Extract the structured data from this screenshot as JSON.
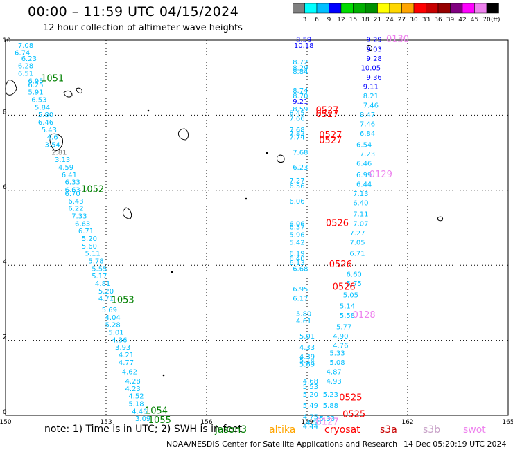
{
  "header": {
    "title": "00:00 – 11:59 UTC 04/15/2024",
    "subtitle": "12 hour collection of altimeter wave heights"
  },
  "colorbar": {
    "colors": [
      "#808080",
      "#00ffff",
      "#00bfff",
      "#0000ff",
      "#00dc00",
      "#00b000",
      "#009000",
      "#ffff00",
      "#ffd700",
      "#ffa500",
      "#ff0000",
      "#c80000",
      "#960000",
      "#800080",
      "#ff00ff",
      "#ee82ee",
      "#000000"
    ],
    "labels": [
      "3",
      "6",
      "9",
      "12",
      "15",
      "18",
      "21",
      "24",
      "27",
      "30",
      "33",
      "36",
      "39",
      "42",
      "45",
      "70"
    ],
    "unit": "(ft)"
  },
  "note": "note: 1) Time is in UTC; 2) SWH is in feet",
  "missions": [
    {
      "name": "jason3",
      "color": "#008000"
    },
    {
      "name": "altika",
      "color": "#ffa500"
    },
    {
      "name": "cryosat",
      "color": "#ff0000"
    },
    {
      "name": "s3a",
      "color": "#c80000"
    },
    {
      "name": "s3b",
      "color": "#c8a2c8"
    },
    {
      "name": "swot",
      "color": "#ee82ee"
    }
  ],
  "footer": {
    "credit": "NOAA/NESDIS Center for Satellite Applications and Research",
    "timestamp": "14 Dec 05:20:19 UTC 2024"
  },
  "chart_data": {
    "type": "scatter",
    "xlim": [
      150,
      165
    ],
    "ylim": [
      0,
      10
    ],
    "xticks": [
      "150",
      "153",
      "156",
      "159",
      "162",
      "165"
    ],
    "yticks": [
      "0",
      "2",
      "4",
      "6",
      "8",
      "10"
    ],
    "grid": true,
    "points": [
      {
        "x": 150.6,
        "y": 9.8,
        "v": "7.08",
        "c": "#00bfff"
      },
      {
        "x": 150.5,
        "y": 9.6,
        "v": "6.74",
        "c": "#00bfff"
      },
      {
        "x": 150.7,
        "y": 9.45,
        "v": "6.23",
        "c": "#00bfff"
      },
      {
        "x": 150.6,
        "y": 9.25,
        "v": "6.28",
        "c": "#00bfff"
      },
      {
        "x": 150.6,
        "y": 9.05,
        "v": "6.51",
        "c": "#00bfff"
      },
      {
        "x": 150.9,
        "y": 8.85,
        "v": "6.95",
        "c": "#00bfff"
      },
      {
        "x": 150.9,
        "y": 8.75,
        "v": "6.25",
        "c": "#00bfff"
      },
      {
        "x": 150.9,
        "y": 8.55,
        "v": "5.91",
        "c": "#00bfff"
      },
      {
        "x": 151.0,
        "y": 8.35,
        "v": "6.53",
        "c": "#00bfff"
      },
      {
        "x": 151.1,
        "y": 8.15,
        "v": "5.84",
        "c": "#00bfff"
      },
      {
        "x": 151.2,
        "y": 7.95,
        "v": "5.80",
        "c": "#00bfff"
      },
      {
        "x": 151.2,
        "y": 7.75,
        "v": "6.46",
        "c": "#00bfff"
      },
      {
        "x": 151.3,
        "y": 7.55,
        "v": "5.43",
        "c": "#00bfff"
      },
      {
        "x": 151.4,
        "y": 7.35,
        "v": "4.6",
        "c": "#00bfff"
      },
      {
        "x": 151.4,
        "y": 7.15,
        "v": "3.54",
        "c": "#00bfff"
      },
      {
        "x": 151.6,
        "y": 6.95,
        "v": "2.81",
        "c": "#808080"
      },
      {
        "x": 151.7,
        "y": 6.75,
        "v": "3.13",
        "c": "#00bfff"
      },
      {
        "x": 151.8,
        "y": 6.55,
        "v": "4.59",
        "c": "#00bfff"
      },
      {
        "x": 151.9,
        "y": 6.35,
        "v": "6.41",
        "c": "#00bfff"
      },
      {
        "x": 152.0,
        "y": 6.15,
        "v": "6.33",
        "c": "#00bfff"
      },
      {
        "x": 152.0,
        "y": 5.95,
        "v": "6.63",
        "c": "#00bfff"
      },
      {
        "x": 152.0,
        "y": 5.85,
        "v": "6.70",
        "c": "#00bfff"
      },
      {
        "x": 152.1,
        "y": 5.65,
        "v": "6.43",
        "c": "#00bfff"
      },
      {
        "x": 152.1,
        "y": 5.45,
        "v": "6.22",
        "c": "#00bfff"
      },
      {
        "x": 152.2,
        "y": 5.25,
        "v": "7.33",
        "c": "#00bfff"
      },
      {
        "x": 152.3,
        "y": 5.05,
        "v": "6.63",
        "c": "#00bfff"
      },
      {
        "x": 152.4,
        "y": 4.85,
        "v": "6.71",
        "c": "#00bfff"
      },
      {
        "x": 152.5,
        "y": 4.65,
        "v": "5.20",
        "c": "#00bfff"
      },
      {
        "x": 152.5,
        "y": 4.45,
        "v": "5.60",
        "c": "#00bfff"
      },
      {
        "x": 152.6,
        "y": 4.25,
        "v": "5.11",
        "c": "#00bfff"
      },
      {
        "x": 152.7,
        "y": 4.05,
        "v": "5.78",
        "c": "#00bfff"
      },
      {
        "x": 152.8,
        "y": 3.85,
        "v": "5.55",
        "c": "#00bfff"
      },
      {
        "x": 152.8,
        "y": 3.65,
        "v": "5.17",
        "c": "#00bfff"
      },
      {
        "x": 152.9,
        "y": 3.45,
        "v": "4.81",
        "c": "#00bfff"
      },
      {
        "x": 153.0,
        "y": 3.25,
        "v": "5.20",
        "c": "#00bfff"
      },
      {
        "x": 153.0,
        "y": 3.05,
        "v": "4.71",
        "c": "#00bfff"
      },
      {
        "x": 153.1,
        "y": 2.75,
        "v": "5.69",
        "c": "#00bfff"
      },
      {
        "x": 153.2,
        "y": 2.55,
        "v": "4.04",
        "c": "#00bfff"
      },
      {
        "x": 153.2,
        "y": 2.35,
        "v": "5.28",
        "c": "#00bfff"
      },
      {
        "x": 153.3,
        "y": 2.15,
        "v": "5.01",
        "c": "#00bfff"
      },
      {
        "x": 153.4,
        "y": 1.95,
        "v": "4.36",
        "c": "#00bfff"
      },
      {
        "x": 153.5,
        "y": 1.75,
        "v": "3.93",
        "c": "#00bfff"
      },
      {
        "x": 153.6,
        "y": 1.55,
        "v": "4.21",
        "c": "#00bfff"
      },
      {
        "x": 153.6,
        "y": 1.35,
        "v": "4.77",
        "c": "#00bfff"
      },
      {
        "x": 153.7,
        "y": 1.1,
        "v": "4.62",
        "c": "#00bfff"
      },
      {
        "x": 153.8,
        "y": 0.85,
        "v": "4.28",
        "c": "#00bfff"
      },
      {
        "x": 153.8,
        "y": 0.65,
        "v": "4.23",
        "c": "#00bfff"
      },
      {
        "x": 153.9,
        "y": 0.45,
        "v": "4.52",
        "c": "#00bfff"
      },
      {
        "x": 153.9,
        "y": 0.25,
        "v": "5.18",
        "c": "#00bfff"
      },
      {
        "x": 154.0,
        "y": 0.05,
        "v": "4.46",
        "c": "#00bfff"
      },
      {
        "x": 154.1,
        "y": -0.15,
        "v": "3.09",
        "c": "#00bfff"
      },
      {
        "x": 158.9,
        "y": 9.95,
        "v": "8.59",
        "c": "#0000ff"
      },
      {
        "x": 158.9,
        "y": 9.8,
        "v": "10.18",
        "c": "#0000ff"
      },
      {
        "x": 158.8,
        "y": 9.35,
        "v": "8.72",
        "c": "#00bfff"
      },
      {
        "x": 158.8,
        "y": 9.2,
        "v": "8.29",
        "c": "#00bfff"
      },
      {
        "x": 158.8,
        "y": 9.1,
        "v": "8.84",
        "c": "#00bfff"
      },
      {
        "x": 158.8,
        "y": 8.6,
        "v": "8.74",
        "c": "#00bfff"
      },
      {
        "x": 158.8,
        "y": 8.45,
        "v": "8.70",
        "c": "#00bfff"
      },
      {
        "x": 158.8,
        "y": 8.3,
        "v": "9.21",
        "c": "#0000ff"
      },
      {
        "x": 158.8,
        "y": 8.1,
        "v": "8.59",
        "c": "#00bfff"
      },
      {
        "x": 158.7,
        "y": 8.0,
        "v": "8.45",
        "c": "#00bfff"
      },
      {
        "x": 158.7,
        "y": 7.85,
        "v": "7.66",
        "c": "#00bfff"
      },
      {
        "x": 158.7,
        "y": 7.55,
        "v": "7.68",
        "c": "#00bfff"
      },
      {
        "x": 158.7,
        "y": 7.45,
        "v": "7.82",
        "c": "#00bfff"
      },
      {
        "x": 158.7,
        "y": 7.35,
        "v": "7.74",
        "c": "#00bfff"
      },
      {
        "x": 158.8,
        "y": 6.95,
        "v": "7.68",
        "c": "#00bfff"
      },
      {
        "x": 158.8,
        "y": 6.55,
        "v": "6.23",
        "c": "#00bfff"
      },
      {
        "x": 158.7,
        "y": 6.2,
        "v": "7.27",
        "c": "#00bfff"
      },
      {
        "x": 158.7,
        "y": 6.05,
        "v": "6.56",
        "c": "#00bfff"
      },
      {
        "x": 158.7,
        "y": 5.65,
        "v": "6.06",
        "c": "#00bfff"
      },
      {
        "x": 158.7,
        "y": 5.05,
        "v": "6.06",
        "c": "#00bfff"
      },
      {
        "x": 158.7,
        "y": 4.95,
        "v": "6.37",
        "c": "#00bfff"
      },
      {
        "x": 158.7,
        "y": 4.75,
        "v": "5.96",
        "c": "#00bfff"
      },
      {
        "x": 158.7,
        "y": 4.55,
        "v": "5.42",
        "c": "#00bfff"
      },
      {
        "x": 158.7,
        "y": 4.25,
        "v": "6.19",
        "c": "#00bfff"
      },
      {
        "x": 158.7,
        "y": 4.12,
        "v": "6.40",
        "c": "#00bfff"
      },
      {
        "x": 158.7,
        "y": 4.0,
        "v": "6.13",
        "c": "#00bfff"
      },
      {
        "x": 158.8,
        "y": 3.85,
        "v": "6.68",
        "c": "#00bfff"
      },
      {
        "x": 158.8,
        "y": 3.3,
        "v": "6.95",
        "c": "#00bfff"
      },
      {
        "x": 158.8,
        "y": 3.05,
        "v": "6.17",
        "c": "#00bfff"
      },
      {
        "x": 158.9,
        "y": 2.65,
        "v": "5.80",
        "c": "#00bfff"
      },
      {
        "x": 158.9,
        "y": 2.45,
        "v": "4.61",
        "c": "#00bfff"
      },
      {
        "x": 159.0,
        "y": 2.05,
        "v": "5.01",
        "c": "#00bfff"
      },
      {
        "x": 159.0,
        "y": 1.75,
        "v": "4.33",
        "c": "#00bfff"
      },
      {
        "x": 159.0,
        "y": 1.5,
        "v": "4.39",
        "c": "#00bfff"
      },
      {
        "x": 159.0,
        "y": 1.4,
        "v": "5.14",
        "c": "#00bfff"
      },
      {
        "x": 159.0,
        "y": 1.3,
        "v": "5.69",
        "c": "#00bfff"
      },
      {
        "x": 159.1,
        "y": 0.85,
        "v": "4.68",
        "c": "#00bfff"
      },
      {
        "x": 159.1,
        "y": 0.7,
        "v": "5.53",
        "c": "#00bfff"
      },
      {
        "x": 159.1,
        "y": 0.5,
        "v": "5.20",
        "c": "#00bfff"
      },
      {
        "x": 159.1,
        "y": 0.2,
        "v": "5.49",
        "c": "#00bfff"
      },
      {
        "x": 159.1,
        "y": -0.1,
        "v": "4.75",
        "c": "#00bfff"
      },
      {
        "x": 159.2,
        "y": -0.25,
        "v": "4.55",
        "c": "#00bfff"
      },
      {
        "x": 159.1,
        "y": -0.35,
        "v": "4.44",
        "c": "#00bfff"
      },
      {
        "x": 161.0,
        "y": 9.95,
        "v": "9.29",
        "c": "#0000ff"
      },
      {
        "x": 161.0,
        "y": 9.7,
        "v": "9.03",
        "c": "#0000ff"
      },
      {
        "x": 161.0,
        "y": 9.45,
        "v": "9.28",
        "c": "#0000ff"
      },
      {
        "x": 160.9,
        "y": 9.2,
        "v": "10.05",
        "c": "#0000ff"
      },
      {
        "x": 161.0,
        "y": 8.95,
        "v": "9.36",
        "c": "#0000ff"
      },
      {
        "x": 160.9,
        "y": 8.7,
        "v": "9.11",
        "c": "#0000ff"
      },
      {
        "x": 160.9,
        "y": 8.45,
        "v": "8.21",
        "c": "#00bfff"
      },
      {
        "x": 160.9,
        "y": 8.2,
        "v": "7.46",
        "c": "#00bfff"
      },
      {
        "x": 160.8,
        "y": 7.95,
        "v": "8.47",
        "c": "#00bfff"
      },
      {
        "x": 160.8,
        "y": 7.7,
        "v": "7.46",
        "c": "#00bfff"
      },
      {
        "x": 160.8,
        "y": 7.45,
        "v": "6.84",
        "c": "#00bfff"
      },
      {
        "x": 160.7,
        "y": 7.15,
        "v": "6.54",
        "c": "#00bfff"
      },
      {
        "x": 160.8,
        "y": 6.9,
        "v": "7.23",
        "c": "#00bfff"
      },
      {
        "x": 160.7,
        "y": 6.65,
        "v": "6.46",
        "c": "#00bfff"
      },
      {
        "x": 160.7,
        "y": 6.35,
        "v": "6.99",
        "c": "#00bfff"
      },
      {
        "x": 160.7,
        "y": 6.1,
        "v": "6.44",
        "c": "#00bfff"
      },
      {
        "x": 160.6,
        "y": 5.85,
        "v": "7.13",
        "c": "#00bfff"
      },
      {
        "x": 160.6,
        "y": 5.6,
        "v": "6.40",
        "c": "#00bfff"
      },
      {
        "x": 160.6,
        "y": 5.3,
        "v": "7.11",
        "c": "#00bfff"
      },
      {
        "x": 160.6,
        "y": 5.05,
        "v": "7.07",
        "c": "#00bfff"
      },
      {
        "x": 160.5,
        "y": 4.8,
        "v": "7.27",
        "c": "#00bfff"
      },
      {
        "x": 160.5,
        "y": 4.55,
        "v": "7.05",
        "c": "#00bfff"
      },
      {
        "x": 160.5,
        "y": 4.25,
        "v": "6.71",
        "c": "#00bfff"
      },
      {
        "x": 160.4,
        "y": 3.7,
        "v": "6.60",
        "c": "#00bfff"
      },
      {
        "x": 160.4,
        "y": 3.45,
        "v": "5.75",
        "c": "#00bfff"
      },
      {
        "x": 160.3,
        "y": 3.15,
        "v": "5.05",
        "c": "#00bfff"
      },
      {
        "x": 160.2,
        "y": 2.85,
        "v": "5.14",
        "c": "#00bfff"
      },
      {
        "x": 160.2,
        "y": 2.6,
        "v": "5.58",
        "c": "#00bfff"
      },
      {
        "x": 160.1,
        "y": 2.3,
        "v": "5.77",
        "c": "#00bfff"
      },
      {
        "x": 160.0,
        "y": 2.05,
        "v": "4.90",
        "c": "#00bfff"
      },
      {
        "x": 160.0,
        "y": 1.8,
        "v": "4.76",
        "c": "#00bfff"
      },
      {
        "x": 159.9,
        "y": 1.6,
        "v": "5.33",
        "c": "#00bfff"
      },
      {
        "x": 159.9,
        "y": 1.35,
        "v": "5.08",
        "c": "#00bfff"
      },
      {
        "x": 159.8,
        "y": 1.1,
        "v": "4.87",
        "c": "#00bfff"
      },
      {
        "x": 159.8,
        "y": 0.85,
        "v": "4.93",
        "c": "#00bfff"
      },
      {
        "x": 159.7,
        "y": 0.5,
        "v": "5.23",
        "c": "#00bfff"
      },
      {
        "x": 159.7,
        "y": 0.2,
        "v": "5.88",
        "c": "#00bfff"
      },
      {
        "x": 159.6,
        "y": -0.15,
        "v": "5.33",
        "c": "#00bfff"
      }
    ],
    "tracks": [
      {
        "label": "1051",
        "x": 151.4,
        "y": 8.9,
        "c": "#008000"
      },
      {
        "label": "1052",
        "x": 152.6,
        "y": 5.95,
        "c": "#008000"
      },
      {
        "label": "1053",
        "x": 153.5,
        "y": 3.0,
        "c": "#008000"
      },
      {
        "label": "1054",
        "x": 154.5,
        "y": 0.05,
        "c": "#008000"
      },
      {
        "label": "1055",
        "x": 154.6,
        "y": -0.2,
        "c": "#008000"
      },
      {
        "label": "0527",
        "x": 159.6,
        "y": 8.05,
        "c": "#ff0000"
      },
      {
        "label": "0527",
        "x": 159.6,
        "y": 7.95,
        "c": "#ff0000"
      },
      {
        "label": "0527",
        "x": 159.7,
        "y": 7.4,
        "c": "#ff0000"
      },
      {
        "label": "0527",
        "x": 159.7,
        "y": 7.25,
        "c": "#ff0000"
      },
      {
        "label": "0526",
        "x": 159.9,
        "y": 5.05,
        "c": "#ff0000"
      },
      {
        "label": "0526",
        "x": 160.0,
        "y": 3.95,
        "c": "#ff0000"
      },
      {
        "label": "0526",
        "x": 160.1,
        "y": 3.35,
        "c": "#ff0000"
      },
      {
        "label": "0525",
        "x": 160.3,
        "y": 0.4,
        "c": "#ff0000"
      },
      {
        "label": "0525",
        "x": 160.4,
        "y": -0.05,
        "c": "#ff0000"
      },
      {
        "label": "0130",
        "x": 161.7,
        "y": 9.95,
        "c": "#ee82ee"
      },
      {
        "label": "0129",
        "x": 161.2,
        "y": 6.35,
        "c": "#ee82ee"
      },
      {
        "label": "0128",
        "x": 160.7,
        "y": 2.6,
        "c": "#ee82ee"
      },
      {
        "label": "0127",
        "x": 159.6,
        "y": -0.25,
        "c": "#ee82ee"
      }
    ]
  }
}
